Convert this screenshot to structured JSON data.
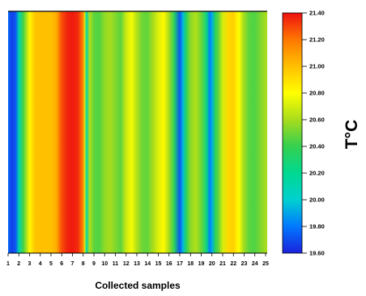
{
  "chart_data": {
    "type": "heatmap",
    "title": "",
    "xlabel": "Collected samples",
    "colorbar_label": "T°C",
    "x_ticks": [
      1,
      2,
      3,
      4,
      5,
      6,
      7,
      8,
      9,
      10,
      11,
      12,
      13,
      14,
      15,
      16,
      17,
      18,
      19,
      20,
      21,
      22,
      23,
      24,
      25
    ],
    "x": [
      1,
      1.3,
      1.7,
      2,
      2.4,
      2.8,
      3,
      3.5,
      4,
      4.5,
      5,
      5.5,
      6,
      6.5,
      7,
      7.5,
      8,
      8.15,
      8.3,
      8.6,
      9,
      9.5,
      10,
      10.5,
      11,
      11.5,
      12,
      12.5,
      13,
      13.5,
      14,
      14.5,
      15,
      15.5,
      16,
      16.5,
      17,
      17.3,
      17.6,
      18,
      18.5,
      19,
      19.5,
      19.8,
      20,
      20.3,
      20.6,
      21,
      21.5,
      22,
      22.5,
      23,
      23.5,
      24,
      24.5,
      25
    ],
    "values": [
      19.78,
      19.67,
      19.72,
      20.1,
      20.42,
      20.66,
      20.82,
      20.98,
      21.0,
      21.0,
      21.0,
      21.05,
      21.28,
      21.36,
      21.38,
      21.35,
      21.15,
      20.7,
      20.1,
      20.62,
      20.47,
      20.45,
      20.56,
      20.6,
      20.53,
      20.47,
      20.68,
      20.78,
      20.62,
      20.5,
      20.48,
      20.6,
      20.72,
      20.82,
      20.6,
      20.35,
      19.72,
      19.95,
      20.35,
      20.55,
      20.62,
      20.5,
      20.25,
      19.82,
      19.92,
      20.35,
      20.48,
      20.7,
      20.92,
      20.95,
      20.8,
      20.58,
      20.46,
      20.45,
      20.52,
      20.6
    ],
    "colorbar": {
      "min": 19.6,
      "max": 21.4,
      "ticks": [
        "19.60",
        "19.80",
        "20.00",
        "20.20",
        "20.40",
        "20.60",
        "20.80",
        "21.00",
        "21.20",
        "21.40"
      ]
    },
    "colormap": [
      "#1b22dc",
      "#0078ff",
      "#00d0d0",
      "#00d890",
      "#34d050",
      "#a8dc1c",
      "#ffff00",
      "#ffc000",
      "#ff7800",
      "#ee1010"
    ],
    "grid": false,
    "legend": "colorbar-right"
  }
}
